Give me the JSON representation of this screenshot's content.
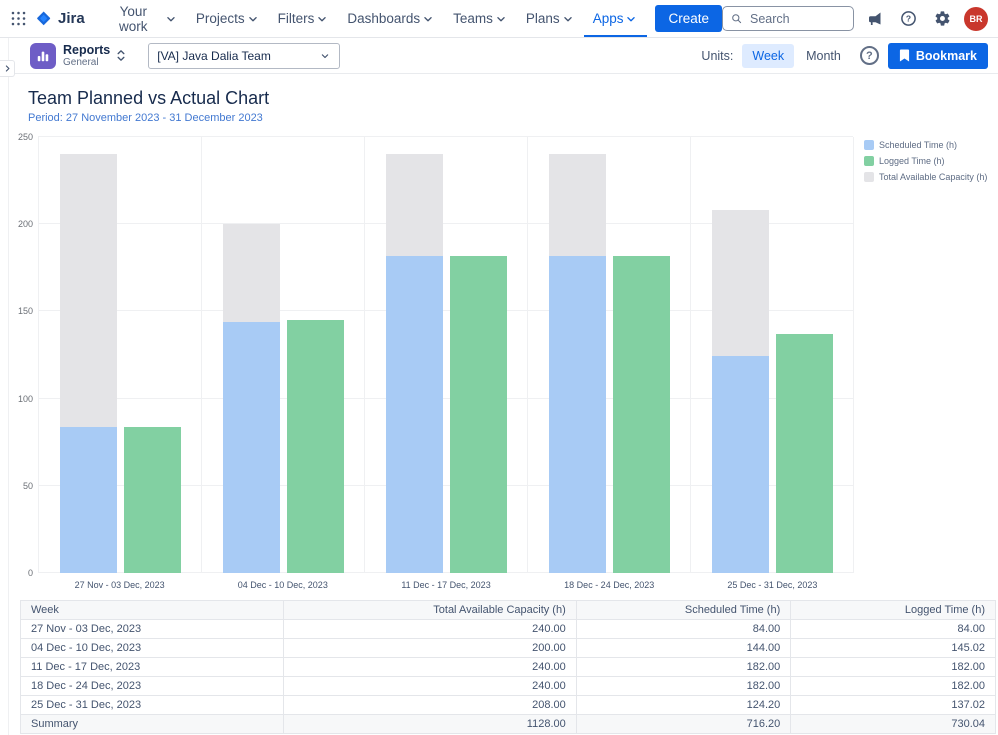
{
  "topnav": {
    "product": "Jira",
    "menu": [
      {
        "label": "Your work",
        "active": false
      },
      {
        "label": "Projects",
        "active": false
      },
      {
        "label": "Filters",
        "active": false
      },
      {
        "label": "Dashboards",
        "active": false
      },
      {
        "label": "Teams",
        "active": false
      },
      {
        "label": "Plans",
        "active": false
      },
      {
        "label": "Apps",
        "active": true
      }
    ],
    "create_label": "Create",
    "search_placeholder": "Search",
    "avatar_initials": "BR"
  },
  "toolbar": {
    "app_title": "Reports",
    "app_subtitle": "General",
    "team_selector": "[VA] Java Dalia Team",
    "units_label": "Units:",
    "units": [
      {
        "label": "Week",
        "active": true
      },
      {
        "label": "Month",
        "active": false
      }
    ],
    "bookmark_label": "Bookmark"
  },
  "page": {
    "title": "Team Planned vs Actual Chart",
    "period": "Period: 27 November 2023 - 31 December 2023"
  },
  "chart_data": {
    "type": "bar",
    "title": "Team Planned vs Actual Chart",
    "categories": [
      "27 Nov - 03 Dec, 2023",
      "04 Dec - 10 Dec, 2023",
      "11 Dec - 17 Dec, 2023",
      "18 Dec - 24 Dec, 2023",
      "25 Dec - 31 Dec, 2023"
    ],
    "series": [
      {
        "name": "Scheduled Time (h)",
        "color": "#A8CBF5",
        "values": [
          84,
          144,
          182,
          182,
          124.2
        ]
      },
      {
        "name": "Logged Time (h)",
        "color": "#82D0A2",
        "values": [
          84,
          145.02,
          182,
          182,
          137.02
        ]
      },
      {
        "name": "Total Available Capacity (h)",
        "color": "#E4E4E7",
        "values": [
          240,
          200,
          240,
          240,
          208
        ]
      }
    ],
    "ylim": [
      0,
      250
    ],
    "yticks": [
      0,
      50,
      100,
      150,
      200,
      250
    ],
    "legend_position": "right",
    "grid": true
  },
  "table": {
    "headers": [
      "Week",
      "Total Available Capacity (h)",
      "Scheduled Time (h)",
      "Logged Time (h)"
    ],
    "rows": [
      [
        "27 Nov - 03 Dec, 2023",
        "240.00",
        "84.00",
        "84.00"
      ],
      [
        "04 Dec - 10 Dec, 2023",
        "200.00",
        "144.00",
        "145.02"
      ],
      [
        "11 Dec - 17 Dec, 2023",
        "240.00",
        "182.00",
        "182.00"
      ],
      [
        "18 Dec - 24 Dec, 2023",
        "240.00",
        "182.00",
        "182.00"
      ],
      [
        "25 Dec - 31 Dec, 2023",
        "208.00",
        "124.20",
        "137.02"
      ]
    ],
    "summary": [
      "Summary",
      "1128.00",
      "716.20",
      "730.04"
    ]
  },
  "colors": {
    "accent": "#0C66E4",
    "scheduled": "#A8CBF5",
    "logged": "#82D0A2",
    "capacity": "#E4E4E7",
    "avatar": "#C9372C",
    "app_icon": "#6E5DC6"
  }
}
